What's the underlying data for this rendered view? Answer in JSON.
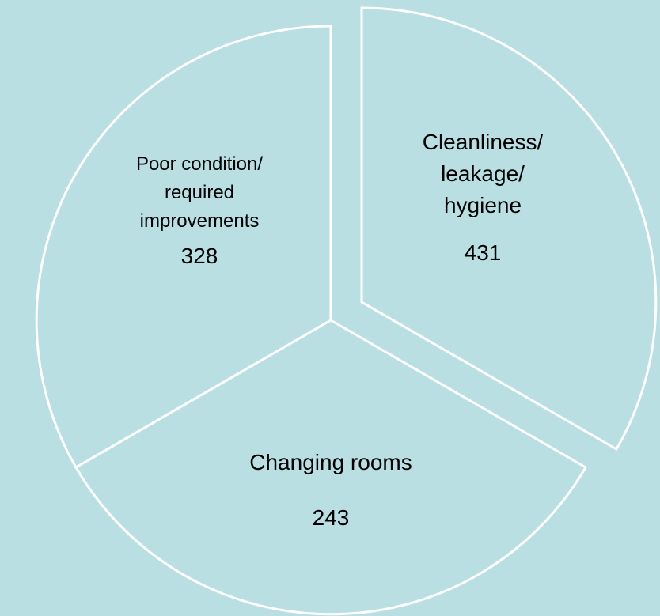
{
  "segments": [
    {
      "label": "Cleanliness/ leakage/ hygiene",
      "count": 431
    },
    {
      "label": "Changing rooms",
      "count": 243
    },
    {
      "label": "Poor condition/ required improvements",
      "count": 328
    }
  ]
}
